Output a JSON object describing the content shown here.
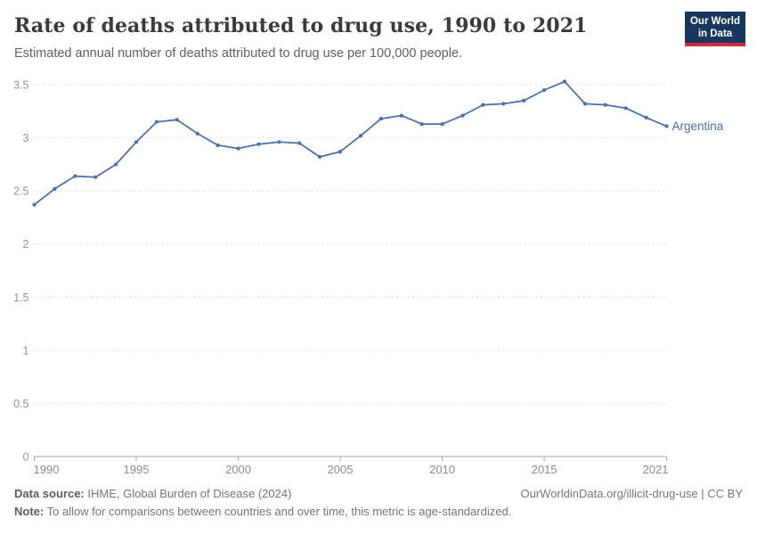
{
  "header": {
    "title": "Rate of deaths attributed to drug use, 1990 to 2021",
    "subtitle": "Estimated annual number of deaths attributed to drug use per 100,000 people.",
    "logo": {
      "line1": "Our World",
      "line2": "in Data",
      "bg_color": "#18375f",
      "bar_color": "#d12d41"
    }
  },
  "chart_data": {
    "type": "line",
    "title": "Rate of deaths attributed to drug use, 1990 to 2021",
    "xlabel": "",
    "ylabel": "",
    "xlim": [
      1990,
      2021
    ],
    "ylim": [
      0,
      3.5
    ],
    "x_ticks": [
      1990,
      1995,
      2000,
      2005,
      2010,
      2015,
      2021
    ],
    "y_ticks": [
      0,
      0.5,
      1,
      1.5,
      2,
      2.5,
      3,
      3.5
    ],
    "grid": "horizontal-dashed",
    "legend_position": "end-of-line-label",
    "years": [
      1990,
      1991,
      1992,
      1993,
      1994,
      1995,
      1996,
      1997,
      1998,
      1999,
      2000,
      2001,
      2002,
      2003,
      2004,
      2005,
      2006,
      2007,
      2008,
      2009,
      2010,
      2011,
      2012,
      2013,
      2014,
      2015,
      2016,
      2017,
      2018,
      2019,
      2020,
      2021
    ],
    "series": [
      {
        "name": "Argentina",
        "color": "#4c6ea9",
        "values": [
          2.37,
          2.52,
          2.64,
          2.63,
          2.75,
          2.96,
          3.15,
          3.17,
          3.04,
          2.93,
          2.9,
          2.94,
          2.96,
          2.95,
          2.82,
          2.87,
          3.02,
          3.18,
          3.21,
          3.13,
          3.13,
          3.21,
          3.31,
          3.32,
          3.35,
          3.45,
          3.53,
          3.32,
          3.31,
          3.28,
          3.19,
          3.11
        ]
      }
    ],
    "colors": {
      "grid": "#e2e2e2",
      "axis": "#a5a5a5",
      "y_tick_label": "#959595",
      "x_tick_label": "#8c8c8c"
    }
  },
  "footer": {
    "source_label": "Data source:",
    "source_text": " IHME, Global Burden of Disease (2024)",
    "link_text": "OurWorldinData.org/illicit-drug-use | CC BY",
    "note_label": "Note:",
    "note_text": " To allow for comparisons between countries and over time, this metric is age-standardized."
  }
}
